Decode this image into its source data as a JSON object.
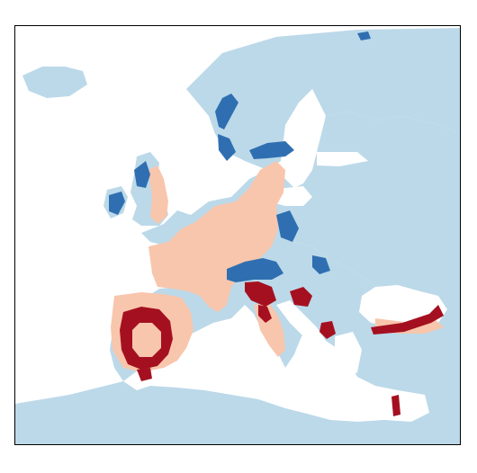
{
  "map": {
    "legend_visible": false,
    "colors": {
      "land": "#bcd9e9",
      "sea_or_no_data": "#ffffff",
      "category_light_blue": "#bcd9e9",
      "category_dark_blue": "#2f6fb1",
      "category_light_orange": "#f8c6ac",
      "category_dark_red": "#a51020"
    }
  }
}
